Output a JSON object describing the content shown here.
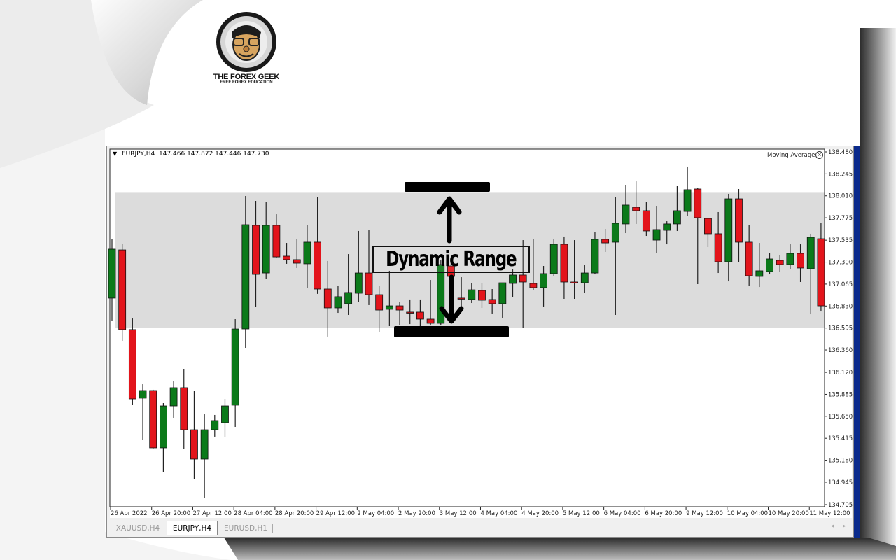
{
  "branding": {
    "logo_title": "THE FOREX GEEK",
    "logo_subtitle": "FREE FOREX EDUCATION"
  },
  "chart_header": {
    "symbol": "EURJPY,H4",
    "ohlc": "147.466 147.872 147.446 147.730"
  },
  "indicator": {
    "name": "Moving Average",
    "close_icon": "close-circle-icon"
  },
  "tabs": [
    {
      "label": "XAUUSD,H4",
      "active": false
    },
    {
      "label": "EURJPY,H4",
      "active": true
    },
    {
      "label": "EURUSD,H1",
      "active": false
    }
  ],
  "colors": {
    "bull": "#0b7a1a",
    "bear": "#e3141b",
    "range_band": "#dcdcdc",
    "window_accent": "#0a2a8c"
  },
  "chart_data": {
    "type": "candlestick",
    "title": "",
    "ylim": [
      134.705,
      138.48
    ],
    "y_ticks": [
      "138.480",
      "138.245",
      "138.010",
      "137.775",
      "137.535",
      "137.300",
      "137.065",
      "136.830",
      "136.595",
      "136.360",
      "136.120",
      "135.885",
      "135.650",
      "135.415",
      "135.180",
      "134.945",
      "134.705"
    ],
    "x_ticks": [
      "26 Apr 2022",
      "26 Apr 20:00",
      "27 Apr 12:00",
      "28 Apr 04:00",
      "28 Apr 20:00",
      "29 Apr 12:00",
      "2 May 04:00",
      "2 May 20:00",
      "3 May 12:00",
      "4 May 04:00",
      "4 May 20:00",
      "5 May 12:00",
      "6 May 04:00",
      "6 May 20:00",
      "9 May 12:00",
      "10 May 04:00",
      "10 May 20:00",
      "11 May 12:00"
    ],
    "candles": [
      [
        136.915,
        137.544,
        136.675,
        137.439
      ],
      [
        137.431,
        137.499,
        136.458,
        136.578
      ],
      [
        136.578,
        136.697,
        135.776,
        135.836
      ],
      [
        135.844,
        135.993,
        135.394,
        135.926
      ],
      [
        135.926,
        135.934,
        135.304,
        135.312
      ],
      [
        135.312,
        135.791,
        135.05,
        135.761
      ],
      [
        135.761,
        136.023,
        135.634,
        135.956
      ],
      [
        135.956,
        136.158,
        135.297,
        135.506
      ],
      [
        135.506,
        135.926,
        134.975,
        135.192
      ],
      [
        135.192,
        135.671,
        134.78,
        135.506
      ],
      [
        135.506,
        135.664,
        135.432,
        135.604
      ],
      [
        135.581,
        135.836,
        135.424,
        135.761
      ],
      [
        135.769,
        136.69,
        135.536,
        136.585
      ],
      [
        136.585,
        138.008,
        136.383,
        137.701
      ],
      [
        137.694,
        137.956,
        136.825,
        137.169
      ],
      [
        137.184,
        137.948,
        137.124,
        137.694
      ],
      [
        137.694,
        137.813,
        137.349,
        137.356
      ],
      [
        137.364,
        137.506,
        137.282,
        137.327
      ],
      [
        137.327,
        137.544,
        137.237,
        137.289
      ],
      [
        137.282,
        137.694,
        137.027,
        137.514
      ],
      [
        137.514,
        137.993,
        136.96,
        137.012
      ],
      [
        137.012,
        137.312,
        136.503,
        136.81
      ],
      [
        136.81,
        137.049,
        136.757,
        136.93
      ],
      [
        136.855,
        137.386,
        136.735,
        136.975
      ],
      [
        136.967,
        137.634,
        136.87,
        137.184
      ],
      [
        137.184,
        137.641,
        136.84,
        136.952
      ],
      [
        136.952,
        137.042,
        136.555,
        136.787
      ],
      [
        136.795,
        137.207,
        136.615,
        136.832
      ],
      [
        136.832,
        136.87,
        136.63,
        136.787
      ],
      [
        136.765,
        136.9,
        136.637,
        136.757
      ],
      [
        136.765,
        136.9,
        136.607,
        136.69
      ],
      [
        136.69,
        137.109,
        136.622,
        136.645
      ],
      [
        136.645,
        137.319,
        136.622,
        137.274
      ],
      [
        137.259,
        137.296,
        137.109,
        137.147
      ],
      [
        136.915,
        137.139,
        136.772,
        136.907
      ],
      [
        136.9,
        137.079,
        136.862,
        137.004
      ],
      [
        136.997,
        137.072,
        136.81,
        136.892
      ],
      [
        136.9,
        137.012,
        136.75,
        136.855
      ],
      [
        136.855,
        137.079,
        136.705,
        137.079
      ],
      [
        137.072,
        137.222,
        136.922,
        137.162
      ],
      [
        137.162,
        137.536,
        136.6,
        137.087
      ],
      [
        137.072,
        137.544,
        137.004,
        137.027
      ],
      [
        137.027,
        137.259,
        136.825,
        137.177
      ],
      [
        137.177,
        137.544,
        137.154,
        137.491
      ],
      [
        137.491,
        137.574,
        136.907,
        137.087
      ],
      [
        137.087,
        137.536,
        136.907,
        137.079
      ],
      [
        137.079,
        137.274,
        136.967,
        137.184
      ],
      [
        137.184,
        137.619,
        137.169,
        137.544
      ],
      [
        137.544,
        137.656,
        137.409,
        137.506
      ],
      [
        137.514,
        138.001,
        136.735,
        137.716
      ],
      [
        137.709,
        138.128,
        137.611,
        137.911
      ],
      [
        137.888,
        138.165,
        137.709,
        137.851
      ],
      [
        137.851,
        137.941,
        137.581,
        137.634
      ],
      [
        137.536,
        137.903,
        137.401,
        137.649
      ],
      [
        137.641,
        137.738,
        137.491,
        137.709
      ],
      [
        137.709,
        138.12,
        137.634,
        137.851
      ],
      [
        137.843,
        138.323,
        137.798,
        138.076
      ],
      [
        138.083,
        138.098,
        137.064,
        137.776
      ],
      [
        137.768,
        137.776,
        137.461,
        137.604
      ],
      [
        137.604,
        137.836,
        137.184,
        137.304
      ],
      [
        137.304,
        138.031,
        137.094,
        137.978
      ],
      [
        137.978,
        138.083,
        137.304,
        137.514
      ],
      [
        137.514,
        137.701,
        137.042,
        137.154
      ],
      [
        137.147,
        137.506,
        137.034,
        137.207
      ],
      [
        137.199,
        137.401,
        137.169,
        137.334
      ],
      [
        137.319,
        137.379,
        137.199,
        137.274
      ],
      [
        137.274,
        137.491,
        137.229,
        137.394
      ],
      [
        137.394,
        137.491,
        137.087,
        137.237
      ],
      [
        137.229,
        137.604,
        136.742,
        137.566
      ],
      [
        137.551,
        137.716,
        136.772,
        136.832
      ]
    ],
    "candle_format": [
      "open",
      "high",
      "low",
      "close"
    ],
    "annotation": {
      "label": "Dynamic Range",
      "range": [
        136.6,
        138.05
      ]
    },
    "grid": false
  }
}
